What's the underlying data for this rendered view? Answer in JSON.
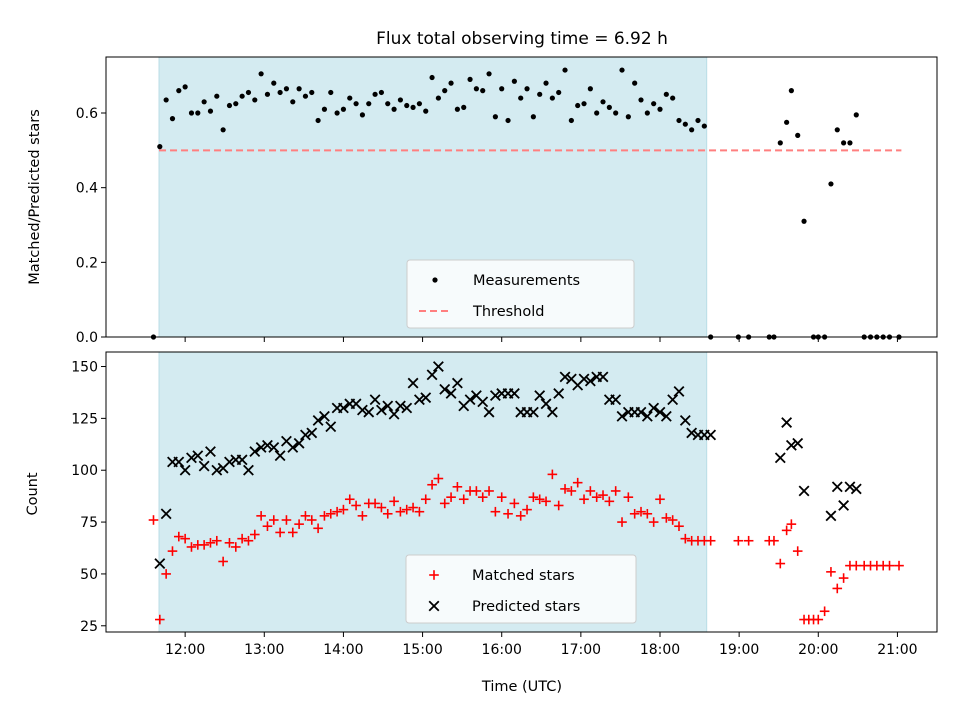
{
  "chart_data": {
    "title": "Flux total observing time = 6.92 h",
    "xlabel": "Time (UTC)",
    "x_unit": "hours UTC",
    "xlim": [
      11.0,
      21.5
    ],
    "x_ticks": [
      12,
      13,
      14,
      15,
      16,
      17,
      18,
      19,
      20,
      21
    ],
    "x_tick_labels": [
      "12:00",
      "13:00",
      "14:00",
      "15:00",
      "16:00",
      "17:00",
      "18:00",
      "19:00",
      "20:00",
      "21:00"
    ],
    "shaded_span": {
      "x0": 11.67,
      "x1": 18.59,
      "color": "#d4ebf1"
    },
    "top": {
      "type": "scatter",
      "ylabel": "Matched/Predicted stars",
      "ylim": [
        0,
        0.75
      ],
      "y_ticks": [
        0.0,
        0.2,
        0.4,
        0.6
      ],
      "y_tick_labels": [
        "0.0",
        "0.2",
        "0.4",
        "0.6"
      ],
      "legend": {
        "placement": "lower-center",
        "entries": [
          "Measurements",
          "Threshold"
        ]
      },
      "threshold": {
        "name": "Threshold",
        "value": 0.5,
        "x0": 11.67,
        "x1": 21.05,
        "color": "#ff7f7f"
      },
      "series": [
        {
          "name": "Measurements",
          "color": "#000000",
          "x": [
            11.6,
            11.68,
            11.76,
            11.84,
            11.92,
            12.0,
            12.08,
            12.16,
            12.24,
            12.32,
            12.4,
            12.48,
            12.56,
            12.64,
            12.72,
            12.8,
            12.88,
            12.96,
            13.04,
            13.12,
            13.2,
            13.28,
            13.36,
            13.44,
            13.52,
            13.6,
            13.68,
            13.76,
            13.84,
            13.92,
            14.0,
            14.08,
            14.16,
            14.24,
            14.32,
            14.4,
            14.48,
            14.56,
            14.64,
            14.72,
            14.8,
            14.88,
            14.96,
            15.04,
            15.12,
            15.2,
            15.28,
            15.36,
            15.44,
            15.52,
            15.6,
            15.68,
            15.76,
            15.84,
            15.92,
            16.0,
            16.08,
            16.16,
            16.24,
            16.32,
            16.4,
            16.48,
            16.56,
            16.64,
            16.72,
            16.8,
            16.88,
            16.96,
            17.04,
            17.12,
            17.2,
            17.28,
            17.36,
            17.44,
            17.52,
            17.6,
            17.68,
            17.76,
            17.84,
            17.92,
            18.0,
            18.08,
            18.16,
            18.24,
            18.32,
            18.4,
            18.48,
            18.56,
            18.64,
            18.99,
            19.12,
            19.38,
            19.44,
            19.52,
            19.6,
            19.66,
            19.74,
            19.82,
            19.94,
            20.0,
            20.08,
            20.16,
            20.24,
            20.32,
            20.4,
            20.48,
            20.58,
            20.66,
            20.74,
            20.82,
            20.9,
            21.02
          ],
          "y": [
            0.0,
            0.51,
            0.635,
            0.585,
            0.66,
            0.67,
            0.6,
            0.6,
            0.63,
            0.605,
            0.645,
            0.555,
            0.62,
            0.625,
            0.645,
            0.655,
            0.635,
            0.705,
            0.65,
            0.68,
            0.655,
            0.665,
            0.63,
            0.665,
            0.645,
            0.655,
            0.58,
            0.61,
            0.655,
            0.6,
            0.61,
            0.64,
            0.625,
            0.595,
            0.625,
            0.65,
            0.655,
            0.625,
            0.61,
            0.635,
            0.62,
            0.615,
            0.625,
            0.605,
            0.695,
            0.64,
            0.66,
            0.68,
            0.61,
            0.615,
            0.69,
            0.665,
            0.66,
            0.705,
            0.59,
            0.665,
            0.58,
            0.685,
            0.64,
            0.665,
            0.59,
            0.65,
            0.68,
            0.64,
            0.655,
            0.715,
            0.58,
            0.62,
            0.625,
            0.665,
            0.6,
            0.63,
            0.615,
            0.6,
            0.715,
            0.59,
            0.68,
            0.635,
            0.6,
            0.625,
            0.61,
            0.65,
            0.64,
            0.58,
            0.57,
            0.555,
            0.58,
            0.565,
            0.0,
            0.0,
            0.0,
            0.0,
            0.0,
            0.52,
            0.575,
            0.66,
            0.54,
            0.31,
            0.0,
            0.0,
            0.0,
            0.41,
            0.555,
            0.52,
            0.52,
            0.595,
            0.0,
            0.0,
            0.0,
            0.0,
            0.0,
            0.0
          ]
        }
      ]
    },
    "bottom": {
      "type": "scatter",
      "ylabel": "Count",
      "ylim": [
        22,
        157
      ],
      "y_ticks": [
        25,
        50,
        75,
        100,
        125,
        150
      ],
      "y_tick_labels": [
        "25",
        "50",
        "75",
        "100",
        "125",
        "150"
      ],
      "legend": {
        "placement": "lower-center",
        "entries": [
          "Matched stars",
          "Predicted stars"
        ]
      },
      "series": [
        {
          "name": "Matched stars",
          "marker": "plus",
          "color": "#ff0000",
          "x": [
            11.6,
            11.68,
            11.76,
            11.84,
            11.92,
            12.0,
            12.08,
            12.16,
            12.24,
            12.32,
            12.4,
            12.48,
            12.56,
            12.64,
            12.72,
            12.8,
            12.88,
            12.96,
            13.04,
            13.12,
            13.2,
            13.28,
            13.36,
            13.44,
            13.52,
            13.6,
            13.68,
            13.76,
            13.84,
            13.92,
            14.0,
            14.08,
            14.16,
            14.24,
            14.32,
            14.4,
            14.48,
            14.56,
            14.64,
            14.72,
            14.8,
            14.88,
            14.96,
            15.04,
            15.12,
            15.2,
            15.28,
            15.36,
            15.44,
            15.52,
            15.6,
            15.68,
            15.76,
            15.84,
            15.92,
            16.0,
            16.08,
            16.16,
            16.24,
            16.32,
            16.4,
            16.48,
            16.56,
            16.64,
            16.72,
            16.8,
            16.88,
            16.96,
            17.04,
            17.12,
            17.2,
            17.28,
            17.36,
            17.44,
            17.52,
            17.6,
            17.68,
            17.76,
            17.84,
            17.92,
            18.0,
            18.08,
            18.16,
            18.24,
            18.32,
            18.4,
            18.48,
            18.56,
            18.64,
            18.99,
            19.12,
            19.38,
            19.44,
            19.52,
            19.6,
            19.66,
            19.74,
            19.82,
            19.88,
            19.94,
            20.0,
            20.08,
            20.16,
            20.24,
            20.32,
            20.4,
            20.48,
            20.58,
            20.66,
            20.74,
            20.82,
            20.9,
            21.02
          ],
          "y": [
            76,
            28,
            50,
            61,
            68,
            67,
            63,
            64,
            64,
            65,
            66,
            56,
            65,
            63,
            67,
            66,
            69,
            78,
            73,
            76,
            70,
            76,
            70,
            74,
            78,
            76,
            72,
            78,
            79,
            80,
            81,
            86,
            83,
            78,
            84,
            84,
            82,
            79,
            85,
            80,
            81,
            82,
            80,
            86,
            93,
            96,
            84,
            87,
            92,
            86,
            90,
            90,
            87,
            90,
            80,
            87,
            79,
            84,
            78,
            81,
            87,
            86,
            85,
            98,
            83,
            91,
            90,
            94,
            86,
            90,
            87,
            88,
            85,
            90,
            75,
            87,
            79,
            80,
            79,
            75,
            86,
            77,
            76,
            73,
            67,
            66,
            66,
            66,
            66,
            66,
            66,
            66,
            66,
            55,
            71,
            74,
            61,
            28,
            28,
            28,
            28,
            32,
            51,
            43,
            48,
            54,
            54,
            54,
            54,
            54,
            54,
            54,
            54
          ],
          "unnamed_note": ""
        },
        {
          "name": "Predicted stars",
          "marker": "x",
          "color": "#000000",
          "x": [
            11.68,
            11.76,
            11.84,
            11.92,
            12.0,
            12.08,
            12.16,
            12.24,
            12.32,
            12.4,
            12.48,
            12.56,
            12.64,
            12.72,
            12.8,
            12.88,
            12.96,
            13.04,
            13.12,
            13.2,
            13.28,
            13.36,
            13.44,
            13.52,
            13.6,
            13.68,
            13.76,
            13.84,
            13.92,
            14.0,
            14.08,
            14.16,
            14.24,
            14.32,
            14.4,
            14.48,
            14.56,
            14.64,
            14.72,
            14.8,
            14.88,
            14.96,
            15.04,
            15.12,
            15.2,
            15.28,
            15.36,
            15.44,
            15.52,
            15.6,
            15.68,
            15.76,
            15.84,
            15.92,
            16.0,
            16.08,
            16.16,
            16.24,
            16.32,
            16.4,
            16.48,
            16.56,
            16.64,
            16.72,
            16.8,
            16.88,
            16.96,
            17.04,
            17.12,
            17.2,
            17.28,
            17.36,
            17.44,
            17.52,
            17.6,
            17.68,
            17.76,
            17.84,
            17.92,
            18.0,
            18.08,
            18.16,
            18.24,
            18.32,
            18.4,
            18.48,
            18.56,
            18.64,
            19.52,
            19.6,
            19.66,
            19.74,
            19.82,
            20.16,
            20.24,
            20.32,
            20.4,
            20.48
          ],
          "y": [
            55,
            79,
            104,
            104,
            100,
            106,
            107,
            102,
            109,
            100,
            101,
            104,
            105,
            105,
            100,
            109,
            111,
            112,
            111,
            107,
            114,
            111,
            113,
            117,
            118,
            124,
            126,
            121,
            130,
            130,
            132,
            132,
            129,
            128,
            134,
            129,
            131,
            127,
            131,
            130,
            142,
            134,
            135,
            146,
            150,
            139,
            137,
            142,
            131,
            134,
            136,
            133,
            128,
            136,
            137,
            137,
            137,
            128,
            128,
            128,
            136,
            132,
            128,
            137,
            145,
            144,
            141,
            144,
            143,
            145,
            145,
            134,
            134,
            126,
            128,
            128,
            128,
            126,
            130,
            128,
            126,
            134,
            138,
            124,
            118,
            117,
            117,
            117,
            106,
            123,
            112,
            113,
            90,
            78,
            92,
            83,
            92,
            91
          ]
        }
      ]
    }
  }
}
